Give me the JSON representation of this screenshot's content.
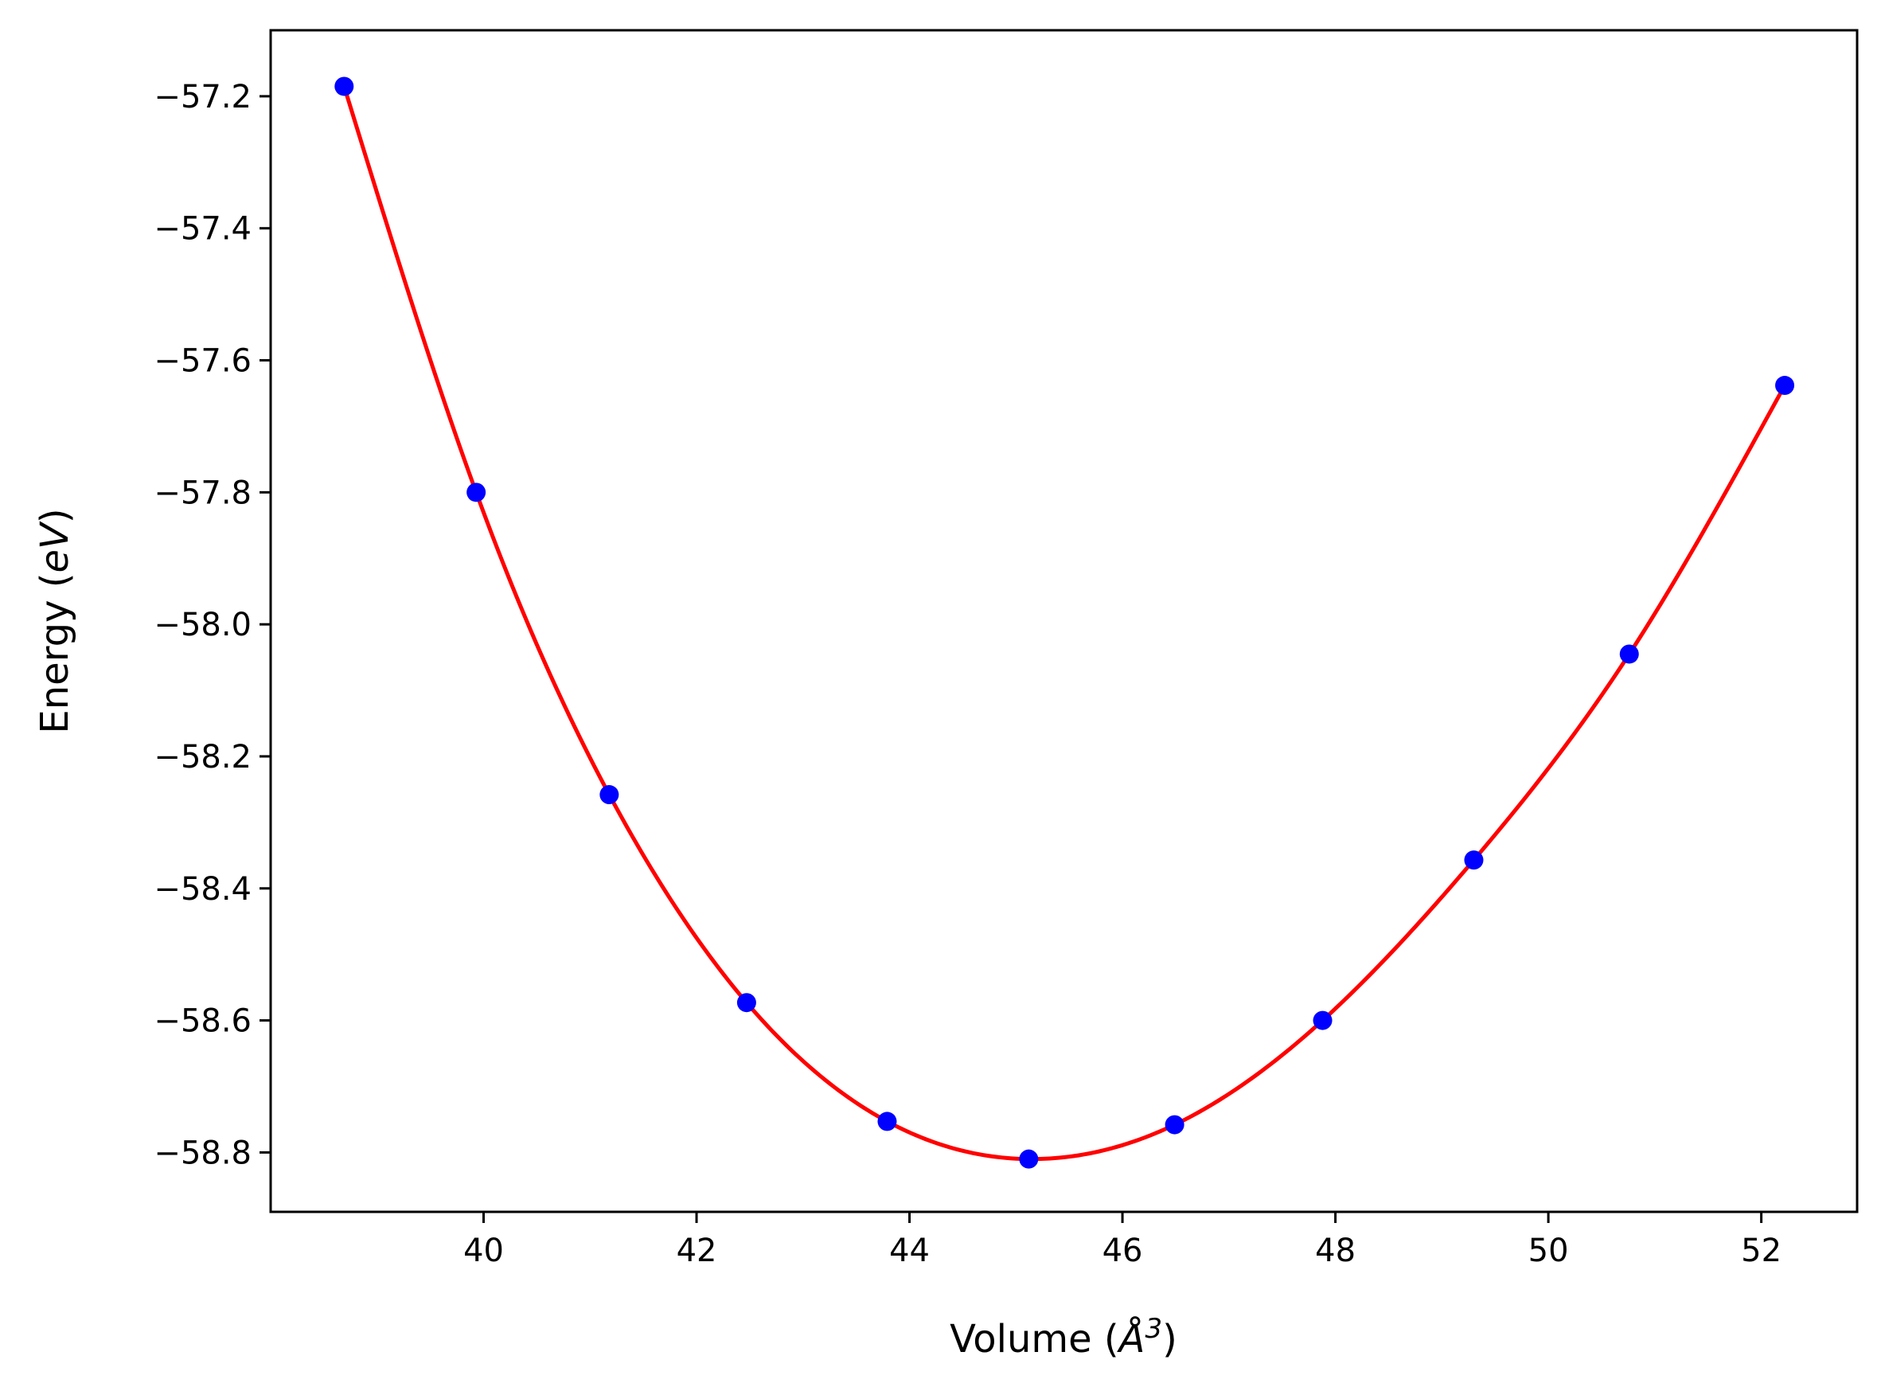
{
  "chart_data": {
    "type": "scatter",
    "title": "",
    "xlabel": "Volume (Å³)",
    "xlabel_parts": {
      "prefix": "Volume (",
      "symbol": "Å",
      "exponent": "3",
      "suffix": ")"
    },
    "ylabel": "Energy (eV)",
    "ylabel_parts": {
      "prefix": "Energy (",
      "unit": "eV",
      "suffix": ")"
    },
    "xlim": [
      38.0,
      52.9
    ],
    "ylim": [
      -58.89,
      -57.1
    ],
    "xticks": [
      40,
      42,
      44,
      46,
      48,
      50,
      52
    ],
    "xtick_labels": [
      "40",
      "42",
      "44",
      "46",
      "48",
      "50",
      "52"
    ],
    "yticks": [
      -57.2,
      -57.4,
      -57.6,
      -57.8,
      -58.0,
      -58.2,
      -58.4,
      -58.6,
      -58.8
    ],
    "ytick_labels": [
      "−57.2",
      "−57.4",
      "−57.6",
      "−57.8",
      "−58.0",
      "−58.2",
      "−58.4",
      "−58.6",
      "−58.8"
    ],
    "grid": false,
    "legend": "none",
    "series": [
      {
        "kind": "scatter",
        "color": "#0000ff",
        "x": [
          38.69,
          39.93,
          41.18,
          42.47,
          43.79,
          45.12,
          46.49,
          47.88,
          49.3,
          50.76,
          52.22
        ],
        "y": [
          -57.185,
          -57.8,
          -58.258,
          -58.573,
          -58.753,
          -58.81,
          -58.758,
          -58.6,
          -58.357,
          -58.045,
          -57.638
        ]
      },
      {
        "kind": "line",
        "color": "#ff0000",
        "fit": "cubic spline through data points",
        "x": [
          38.69,
          39.93,
          41.18,
          42.47,
          43.79,
          45.12,
          46.49,
          47.88,
          49.3,
          50.76,
          52.22
        ],
        "y": [
          -57.185,
          -57.8,
          -58.258,
          -58.573,
          -58.753,
          -58.81,
          -58.758,
          -58.6,
          -58.357,
          -58.045,
          -57.638
        ]
      }
    ]
  }
}
